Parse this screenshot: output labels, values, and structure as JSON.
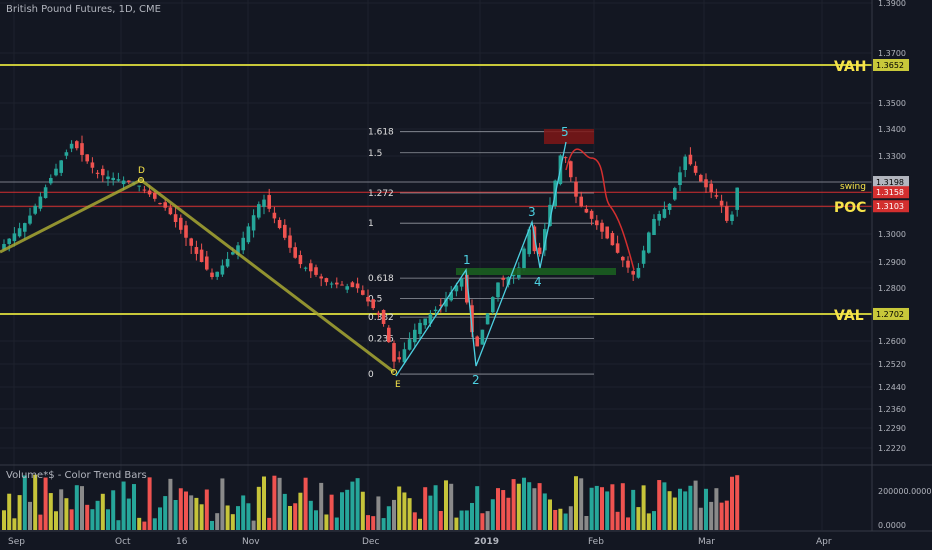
{
  "header": {
    "title": "British Pound Futures, 1D, CME",
    "volume_title": "Volume*$ - Color Trend Bars"
  },
  "colors": {
    "background": "#131722",
    "up": "#26a69a",
    "down": "#ef5350",
    "yellow_line": "#c8c83a",
    "fib": "#e0e0e0",
    "wave": "#4dd0e1",
    "red_line": "#d32f2f",
    "green_zone": "#1b5e20",
    "red_zone": "#7f1616"
  },
  "chart_data": {
    "type": "candlestick",
    "title": "British Pound Futures, 1D, CME",
    "y_axis": {
      "ticks": [
        "1.3900",
        "1.3700",
        "1.3500",
        "1.3400",
        "1.3300",
        "1.3100",
        "1.3000",
        "1.2900",
        "1.2800",
        "1.2600",
        "1.2520",
        "1.2440",
        "1.2360",
        "1.2290",
        "1.2220"
      ]
    },
    "x_axis": {
      "ticks": [
        "Sep",
        "Oct",
        "16",
        "Nov",
        "Dec",
        "2019",
        "Feb",
        "Mar",
        "Apr"
      ]
    },
    "price_labels": [
      {
        "text": "1.3652",
        "color": "#c8c83a",
        "text_color": "#000"
      },
      {
        "text": "1.3198",
        "color": "#b2b5be",
        "text_color": "#000"
      },
      {
        "text": "1.3158",
        "color": "#d32f2f",
        "text_color": "#fff"
      },
      {
        "text": "1.3103",
        "color": "#d32f2f",
        "text_color": "#fff"
      },
      {
        "text": "1.2702",
        "color": "#c8c83a",
        "text_color": "#000"
      }
    ],
    "horizontal_lines": [
      {
        "value": 1.3652,
        "label": "VAH",
        "color": "#c8c83a"
      },
      {
        "value": 1.2702,
        "label": "VAL",
        "color": "#c8c83a"
      },
      {
        "value": 1.3198,
        "label": "",
        "color": "#787b86"
      },
      {
        "value": 1.3158,
        "label": "swing",
        "color": "#d32f2f"
      },
      {
        "value": 1.3103,
        "label": "POC",
        "color": "#d32f2f"
      }
    ],
    "fib_levels": [
      {
        "ratio": "1.618",
        "value": 1.339
      },
      {
        "ratio": "1.5",
        "value": 1.3312
      },
      {
        "ratio": "1.272",
        "value": 1.3155
      },
      {
        "ratio": "1",
        "value": 1.304
      },
      {
        "ratio": "0.618",
        "value": 1.2838
      },
      {
        "ratio": "0.5",
        "value": 1.276
      },
      {
        "ratio": "0.382",
        "value": 1.269
      },
      {
        "ratio": "0.236",
        "value": 1.261
      },
      {
        "ratio": "0",
        "value": 1.2485
      }
    ],
    "wave_labels": [
      "1",
      "2",
      "3",
      "4",
      "5"
    ],
    "pattern_labels": [
      "D",
      "E"
    ],
    "volume_axis": [
      "200000.0000",
      "0.0000"
    ]
  }
}
